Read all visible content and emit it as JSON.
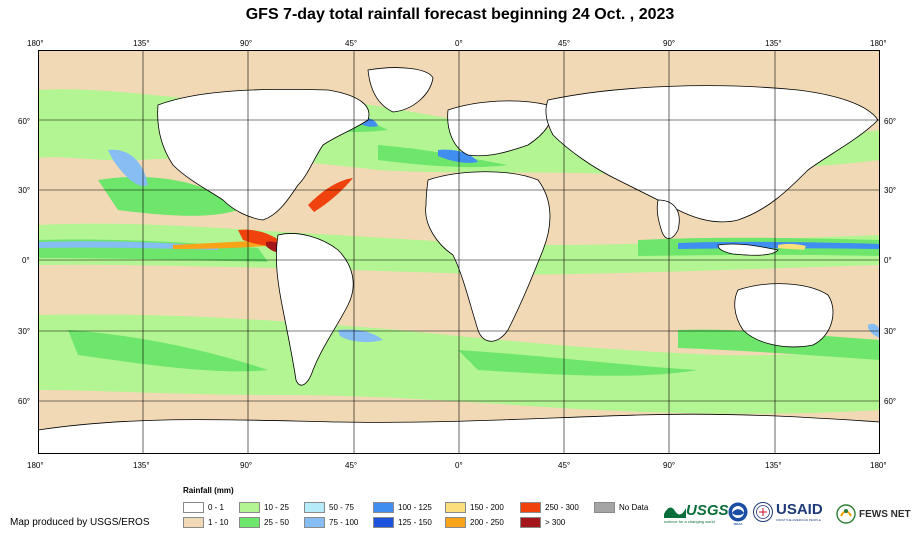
{
  "title": "GFS 7-day total rainfall forecast beginning 24 Oct. , 2023",
  "lon_labels": [
    "180°",
    "135°",
    "90°",
    "45°",
    "0°",
    "45°",
    "90°",
    "135°",
    "180°"
  ],
  "lat_labels": [
    "60°",
    "30°",
    "0°",
    "30°",
    "60°"
  ],
  "legend": {
    "title": "Rainfall (mm)",
    "items": [
      {
        "label": "0 - 1",
        "color": "#ffffff"
      },
      {
        "label": "1 - 10",
        "color": "#f1d9b5"
      },
      {
        "label": "10 - 25",
        "color": "#b3f593"
      },
      {
        "label": "25 - 50",
        "color": "#6ee66b"
      },
      {
        "label": "50 - 75",
        "color": "#b6ecf9"
      },
      {
        "label": "75 - 100",
        "color": "#86bdf2"
      },
      {
        "label": "100 - 125",
        "color": "#3f8ef0"
      },
      {
        "label": "125 - 150",
        "color": "#1c52dc"
      },
      {
        "label": "150 - 200",
        "color": "#fcdf7d"
      },
      {
        "label": "200 - 250",
        "color": "#f9a31a"
      },
      {
        "label": "250 - 300",
        "color": "#f0420c"
      },
      {
        "label": "> 300",
        "color": "#a4161a"
      },
      {
        "label": "No Data",
        "color": "#a5a5a5"
      }
    ]
  },
  "credit": "Map produced by USGS/EROS",
  "logos": {
    "usgs": "USGS",
    "usgs_tagline": "science for a changing world",
    "noaa": "NOAA",
    "usaid": "USAID",
    "usaid_tagline": "FROM THE AMERICAN PEOPLE",
    "fewsnet": "FEWS NET"
  }
}
